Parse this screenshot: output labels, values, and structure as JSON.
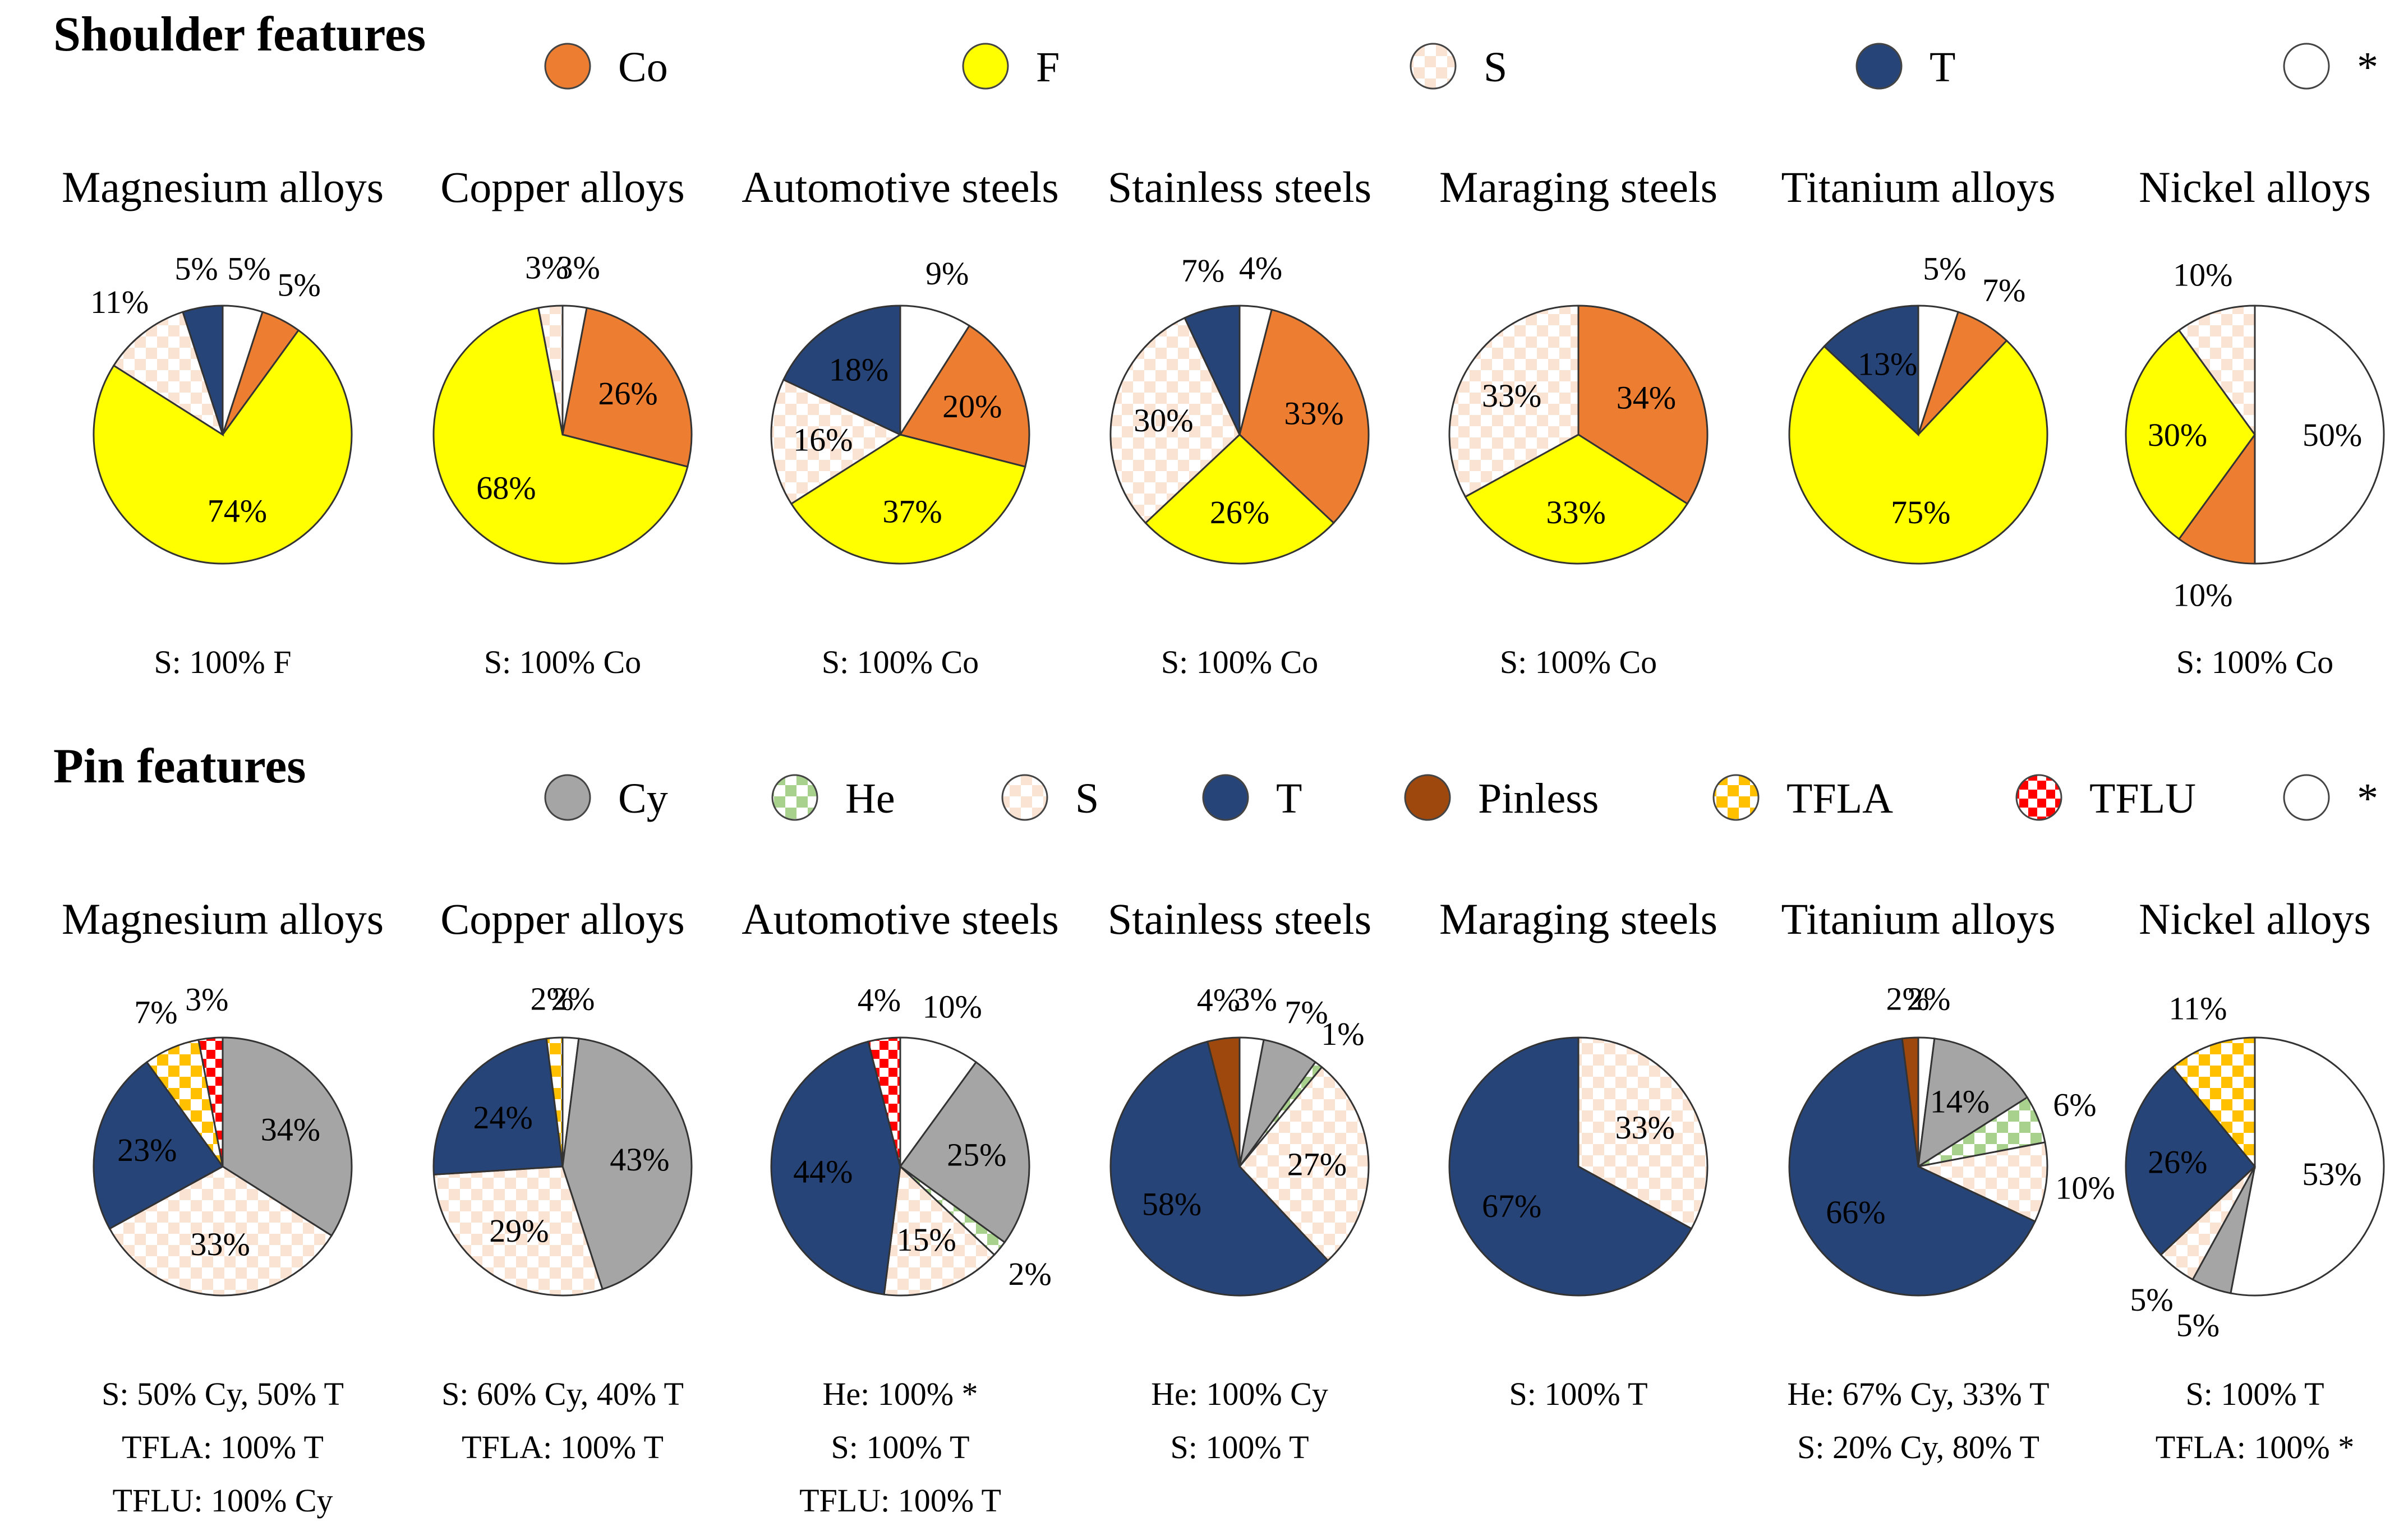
{
  "sections": [
    {
      "id": "shoulder",
      "heading": "Shoulder features",
      "legend": [
        {
          "key": "Co",
          "label": "Co",
          "fill": "#ED7D31"
        },
        {
          "key": "F",
          "label": "F",
          "fill": "#FFFF00"
        },
        {
          "key": "S",
          "label": "S",
          "fill": "checker-peach"
        },
        {
          "key": "T",
          "label": "T",
          "fill": "#264478"
        },
        {
          "key": "*",
          "label": "*",
          "fill": "#FFFFFF"
        }
      ]
    },
    {
      "id": "pin",
      "heading": "Pin features",
      "legend": [
        {
          "key": "Cy",
          "label": "Cy",
          "fill": "#A5A5A5"
        },
        {
          "key": "He",
          "label": "He",
          "fill": "checker-green"
        },
        {
          "key": "S",
          "label": "S",
          "fill": "checker-peach"
        },
        {
          "key": "T",
          "label": "T",
          "fill": "#264478"
        },
        {
          "key": "Pinless",
          "label": "Pinless",
          "fill": "#9E480E"
        },
        {
          "key": "TFLA",
          "label": "TFLA",
          "fill": "checker-yellow"
        },
        {
          "key": "TFLU",
          "label": "TFLU",
          "fill": "checker-red"
        },
        {
          "key": "*",
          "label": "*",
          "fill": "#FFFFFF"
        }
      ]
    }
  ],
  "chart_data": [
    {
      "type": "pie",
      "section": "shoulder",
      "title": "Magnesium alloys",
      "slices": [
        {
          "name": "*",
          "value": 5
        },
        {
          "name": "Co",
          "value": 5
        },
        {
          "name": "F",
          "value": 74
        },
        {
          "name": "S",
          "value": 11
        },
        {
          "name": "T",
          "value": 5
        }
      ],
      "labels": [
        "5%",
        "5%",
        "74%",
        "11%",
        "5%"
      ],
      "notes": [
        "S: 100% F"
      ]
    },
    {
      "type": "pie",
      "section": "shoulder",
      "title": "Copper alloys",
      "slices": [
        {
          "name": "*",
          "value": 3
        },
        {
          "name": "Co",
          "value": 26
        },
        {
          "name": "F",
          "value": 68
        },
        {
          "name": "S",
          "value": 3
        }
      ],
      "labels": [
        "3%",
        "26%",
        "68%",
        "3%"
      ],
      "notes": [
        "S: 100% Co"
      ]
    },
    {
      "type": "pie",
      "section": "shoulder",
      "title": "Automotive steels",
      "slices": [
        {
          "name": "*",
          "value": 9
        },
        {
          "name": "Co",
          "value": 20
        },
        {
          "name": "F",
          "value": 37
        },
        {
          "name": "S",
          "value": 16
        },
        {
          "name": "T",
          "value": 18
        }
      ],
      "labels": [
        "9%",
        "20%",
        "37%",
        "16%",
        "18%"
      ],
      "notes": [
        "S: 100% Co"
      ]
    },
    {
      "type": "pie",
      "section": "shoulder",
      "title": "Stainless steels",
      "slices": [
        {
          "name": "*",
          "value": 4
        },
        {
          "name": "Co",
          "value": 33
        },
        {
          "name": "F",
          "value": 26
        },
        {
          "name": "S",
          "value": 30
        },
        {
          "name": "T",
          "value": 7
        }
      ],
      "labels": [
        "4%",
        "33%",
        "26%",
        "30%",
        "7%"
      ],
      "notes": [
        "S: 100% Co"
      ]
    },
    {
      "type": "pie",
      "section": "shoulder",
      "title": "Maraging steels",
      "slices": [
        {
          "name": "Co",
          "value": 34
        },
        {
          "name": "F",
          "value": 33
        },
        {
          "name": "S",
          "value": 33
        }
      ],
      "labels": [
        "34%",
        "33%",
        "33%"
      ],
      "notes": [
        "S: 100% Co"
      ]
    },
    {
      "type": "pie",
      "section": "shoulder",
      "title": "Titanium alloys",
      "slices": [
        {
          "name": "*",
          "value": 5
        },
        {
          "name": "Co",
          "value": 7
        },
        {
          "name": "F",
          "value": 75
        },
        {
          "name": "T",
          "value": 13
        }
      ],
      "labels": [
        "5%",
        "7%",
        "75%",
        "13%"
      ],
      "notes": []
    },
    {
      "type": "pie",
      "section": "shoulder",
      "title": "Nickel alloys",
      "slices": [
        {
          "name": "*",
          "value": 50
        },
        {
          "name": "Co",
          "value": 10
        },
        {
          "name": "F",
          "value": 30
        },
        {
          "name": "S",
          "value": 10
        }
      ],
      "labels": [
        "50%",
        "10%",
        "30%",
        "10%"
      ],
      "notes": [
        "S: 100% Co"
      ]
    },
    {
      "type": "pie",
      "section": "pin",
      "title": "Magnesium alloys",
      "slices": [
        {
          "name": "Cy",
          "value": 34
        },
        {
          "name": "S",
          "value": 33
        },
        {
          "name": "T",
          "value": 23
        },
        {
          "name": "TFLA",
          "value": 7
        },
        {
          "name": "TFLU",
          "value": 3
        }
      ],
      "labels": [
        "34%",
        "33%",
        "23%",
        "7%",
        "3%"
      ],
      "notes": [
        "S: 50% Cy, 50% T",
        "TFLA: 100% T",
        "TFLU: 100% Cy"
      ]
    },
    {
      "type": "pie",
      "section": "pin",
      "title": "Copper alloys",
      "slices": [
        {
          "name": "*",
          "value": 2
        },
        {
          "name": "Cy",
          "value": 43
        },
        {
          "name": "S",
          "value": 29
        },
        {
          "name": "T",
          "value": 24
        },
        {
          "name": "TFLA",
          "value": 2
        }
      ],
      "labels": [
        "2%",
        "43%",
        "29%",
        "24%",
        "2%"
      ],
      "notes": [
        "S: 60% Cy, 40% T",
        "TFLA: 100% T"
      ]
    },
    {
      "type": "pie",
      "section": "pin",
      "title": "Automotive steels",
      "slices": [
        {
          "name": "*",
          "value": 10
        },
        {
          "name": "Cy",
          "value": 25
        },
        {
          "name": "He",
          "value": 2
        },
        {
          "name": "S",
          "value": 15
        },
        {
          "name": "T",
          "value": 44
        },
        {
          "name": "TFLU",
          "value": 4
        }
      ],
      "labels": [
        "10%",
        "25%",
        "2%",
        "15%",
        "44%",
        "4%"
      ],
      "notes": [
        "He: 100% *",
        "S: 100% T",
        "TFLU: 100% T"
      ]
    },
    {
      "type": "pie",
      "section": "pin",
      "title": "Stainless steels",
      "slices": [
        {
          "name": "*",
          "value": 3
        },
        {
          "name": "Cy",
          "value": 7
        },
        {
          "name": "He",
          "value": 1
        },
        {
          "name": "S",
          "value": 27
        },
        {
          "name": "T",
          "value": 58
        },
        {
          "name": "Pinless",
          "value": 4
        }
      ],
      "labels": [
        "3%",
        "7%",
        "1%",
        "27%",
        "58%",
        "4%"
      ],
      "notes": [
        "He: 100% Cy",
        "S: 100% T"
      ]
    },
    {
      "type": "pie",
      "section": "pin",
      "title": "Maraging steels",
      "slices": [
        {
          "name": "S",
          "value": 33
        },
        {
          "name": "T",
          "value": 67
        }
      ],
      "labels": [
        "33%",
        "67%"
      ],
      "notes": [
        "S: 100% T"
      ]
    },
    {
      "type": "pie",
      "section": "pin",
      "title": "Titanium alloys",
      "slices": [
        {
          "name": "*",
          "value": 2
        },
        {
          "name": "Cy",
          "value": 14
        },
        {
          "name": "He",
          "value": 6
        },
        {
          "name": "S",
          "value": 10
        },
        {
          "name": "T",
          "value": 66
        },
        {
          "name": "Pinless",
          "value": 2
        }
      ],
      "labels": [
        "2%",
        "14%",
        "6%",
        "10%",
        "66%",
        "2%"
      ],
      "notes": [
        "He: 67% Cy, 33% T",
        "S: 20% Cy, 80% T"
      ]
    },
    {
      "type": "pie",
      "section": "pin",
      "title": "Nickel alloys",
      "slices": [
        {
          "name": "*",
          "value": 53
        },
        {
          "name": "Cy",
          "value": 5
        },
        {
          "name": "S",
          "value": 5
        },
        {
          "name": "T",
          "value": 26
        },
        {
          "name": "TFLA",
          "value": 11
        }
      ],
      "labels": [
        "53%",
        "5%",
        "5%",
        "26%",
        "11%"
      ],
      "notes": [
        "S: 100% T",
        "TFLA: 100% *"
      ]
    }
  ]
}
